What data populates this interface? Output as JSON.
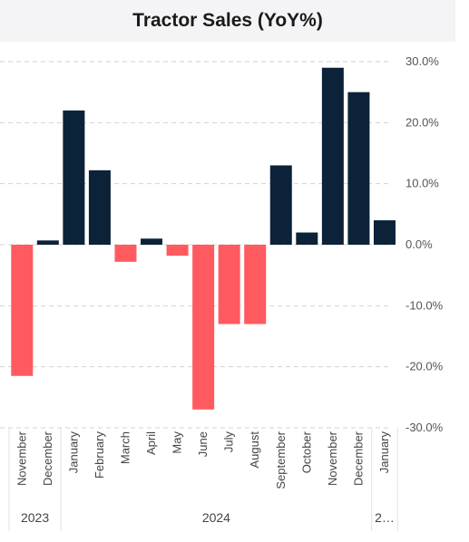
{
  "chart_data": {
    "type": "bar",
    "title": "Tractor Sales (YoY%)",
    "xlabel": "",
    "ylabel": "",
    "categories": [
      "November",
      "December",
      "January",
      "February",
      "March",
      "April",
      "May",
      "June",
      "July",
      "August",
      "September",
      "October",
      "November",
      "December",
      "January"
    ],
    "values": [
      -21.5,
      0.7,
      22.0,
      12.2,
      -2.8,
      1.0,
      -1.8,
      -27.0,
      -13.0,
      -13.0,
      13.0,
      2.0,
      29.0,
      25.0,
      4.0
    ],
    "year_groups": [
      {
        "label": "2023",
        "count": 2
      },
      {
        "label": "2024",
        "count": 12
      },
      {
        "label": "2…",
        "count": 1
      }
    ],
    "y_ticks": [
      "30.0%",
      "20.0%",
      "10.0%",
      "0.0%",
      "-10.0%",
      "-20.0%",
      "-30.0%"
    ],
    "y_tick_values": [
      30,
      20,
      10,
      0,
      -10,
      -20,
      -30
    ],
    "ylim": [
      -30,
      30
    ],
    "colors": {
      "positive": "#0b2239",
      "negative": "#ff5a5f",
      "grid": "#d3d3d3"
    },
    "grid": true
  }
}
